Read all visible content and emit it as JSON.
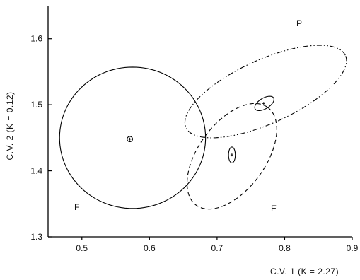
{
  "chart_data": {
    "type": "scatter",
    "title": "",
    "xlabel": "C.V. 1   (K = 2.27)",
    "ylabel": "C.V. 2   (K = 0.12)",
    "xlim": [
      0.45,
      0.9
    ],
    "ylim": [
      1.3,
      1.65
    ],
    "xticks": [
      "0.5",
      "0.6",
      "0.7",
      "0.8",
      "0.9"
    ],
    "yticks": [
      "1.3",
      "1.4",
      "1.5",
      "1.6"
    ],
    "grid": false,
    "groups": [
      {
        "name": "F",
        "mean": [
          0.571,
          1.448
        ],
        "outer_ellipse": {
          "center": [
            0.575,
            1.45
          ],
          "rx": 0.108,
          "ry": 0.107,
          "angle_deg": 0,
          "line_style": "solid"
        },
        "inner_ellipse": {
          "center": [
            0.571,
            1.448
          ],
          "rx": 0.004,
          "ry": 0.004,
          "angle_deg": 0,
          "line_style": "solid"
        }
      },
      {
        "name": "E",
        "mean": [
          0.722,
          1.424
        ],
        "outer_ellipse": {
          "center": [
            0.722,
            1.422
          ],
          "rx": 0.091,
          "ry": 0.05,
          "angle_deg": 55,
          "line_style": "dashed"
        },
        "inner_ellipse": {
          "center": [
            0.722,
            1.424
          ],
          "rx": 0.005,
          "ry": 0.012,
          "angle_deg": 0,
          "line_style": "solid"
        }
      },
      {
        "name": "P",
        "mean": [
          0.769,
          1.502
        ],
        "outer_ellipse": {
          "center": [
            0.772,
            1.52
          ],
          "rx": 0.13,
          "ry": 0.048,
          "angle_deg": 25,
          "line_style": "dash-dot-dot"
        },
        "inner_ellipse": {
          "center": [
            0.77,
            1.502
          ],
          "rx": 0.016,
          "ry": 0.008,
          "angle_deg": 32,
          "line_style": "solid"
        }
      }
    ]
  }
}
